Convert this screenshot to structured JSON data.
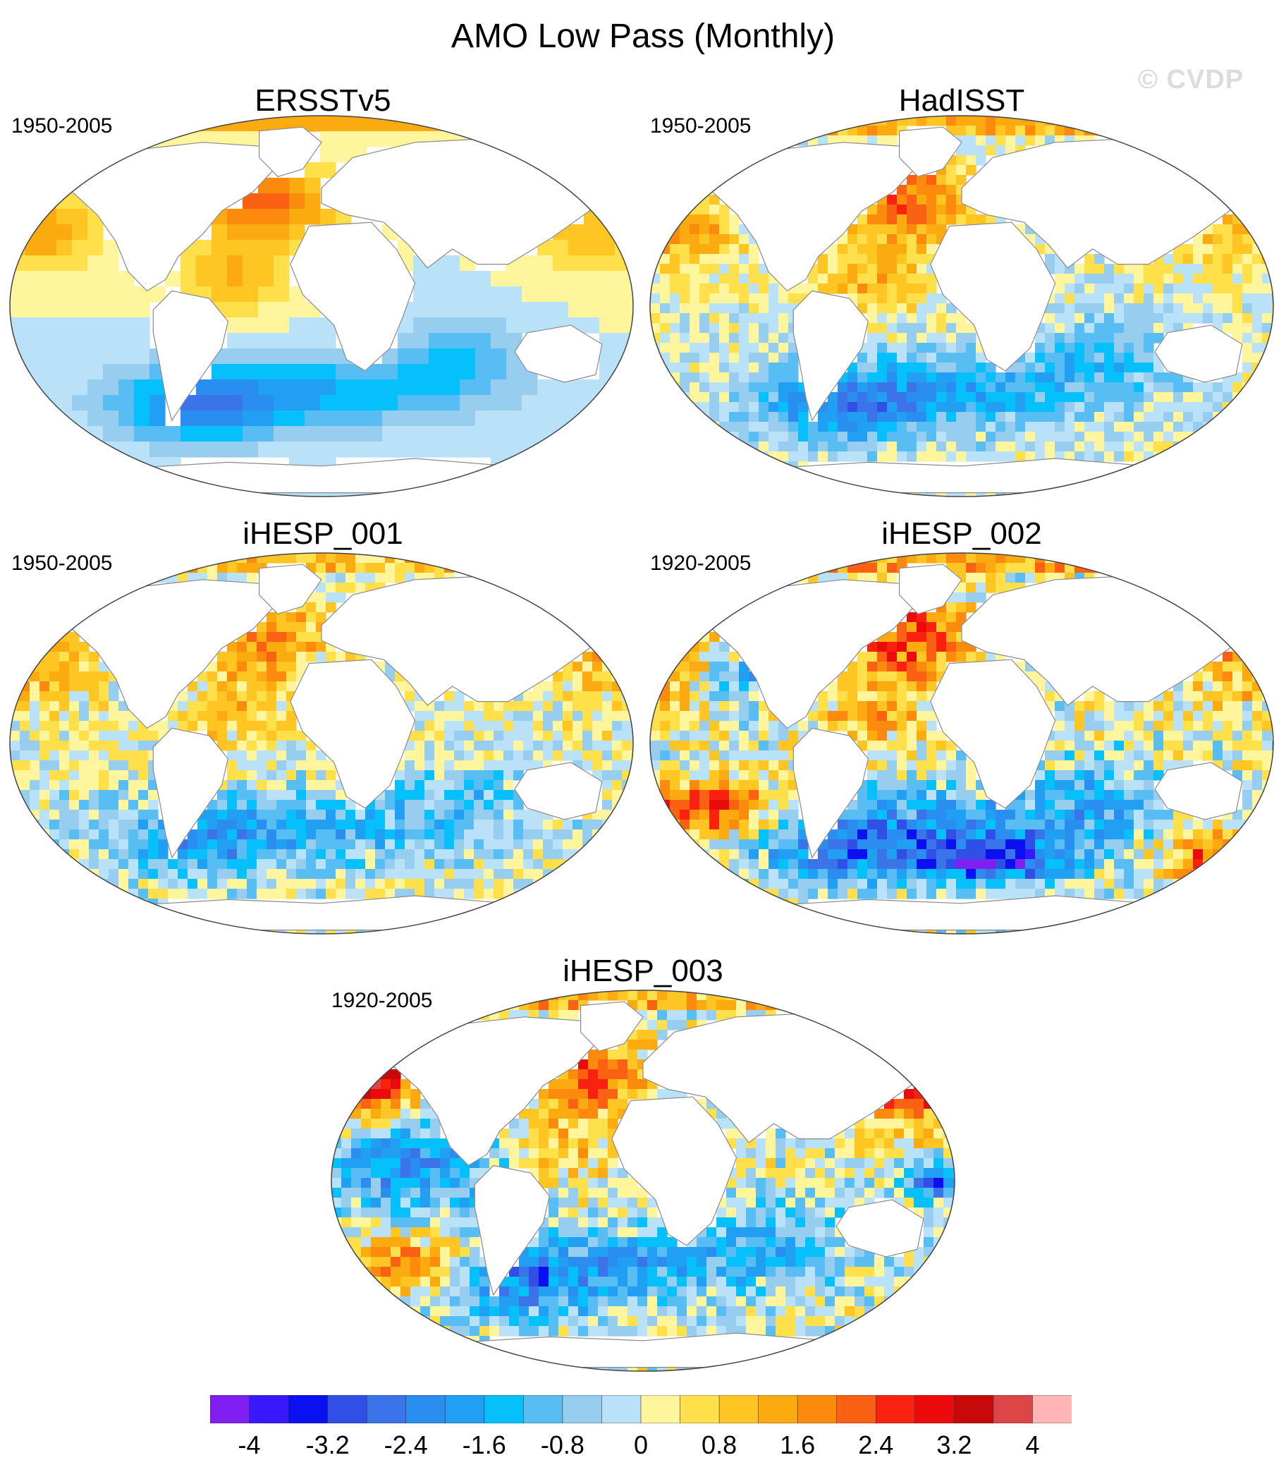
{
  "title": "AMO Low Pass (Monthly)",
  "watermark": "© CVDP",
  "panels": [
    {
      "name": "ERSSTv5",
      "years": "1950-2005",
      "style": "smooth-warm-north"
    },
    {
      "name": "HadISST",
      "years": "1950-2005",
      "style": "patchy-warm-north"
    },
    {
      "name": "iHESP_001",
      "years": "1950-2005",
      "style": "noisy-mild"
    },
    {
      "name": "iHESP_002",
      "years": "1920-2005",
      "style": "noisy-strong"
    },
    {
      "name": "iHESP_003",
      "years": "1920-2005",
      "style": "noisy-strong-pacific"
    }
  ],
  "colorbar": {
    "colors": [
      "#7f1ff2",
      "#3a18ff",
      "#0a10ef",
      "#2f4fe6",
      "#3a74e8",
      "#2a8ef0",
      "#219ff3",
      "#05c0fb",
      "#58bdf2",
      "#97cdef",
      "#b9e1f7",
      "#fff59d",
      "#ffe04a",
      "#ffc623",
      "#fbab0f",
      "#fb8a0d",
      "#fb6112",
      "#fb2110",
      "#eb0a0c",
      "#c60a0a",
      "#dc4646",
      "#ffb5b5"
    ],
    "tick_labels": [
      "-4",
      "-3.2",
      "-2.4",
      "-1.6",
      "-0.8",
      "0",
      "0.8",
      "1.6",
      "2.4",
      "3.2",
      "4"
    ]
  },
  "icons": {
    "land": "continent-outline",
    "ocean": "sst-anomaly-field"
  }
}
